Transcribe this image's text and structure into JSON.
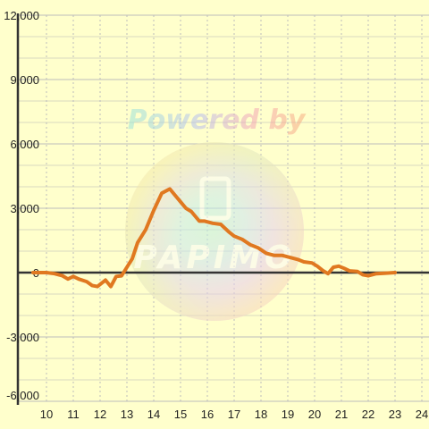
{
  "watermark": {
    "powered_by": "Powered by",
    "brand": "PAPIMO"
  },
  "chart_data": {
    "type": "line",
    "title": "",
    "xlabel": "",
    "ylabel": "",
    "xlim": [
      9.5,
      24.3
    ],
    "ylim": [
      -6000,
      12000
    ],
    "x_ticks": [
      "10",
      "11",
      "12",
      "13",
      "14",
      "15",
      "16",
      "17",
      "18",
      "19",
      "20",
      "21",
      "22",
      "23",
      "24"
    ],
    "y_ticks": [
      "12,000",
      "9,000",
      "6,000",
      "3,000",
      "0",
      "-3,000",
      "-6,000"
    ],
    "grid": true,
    "series": [
      {
        "color": "#e07820",
        "x": [
          9.5,
          10.0,
          10.3,
          10.6,
          10.8,
          11.0,
          11.2,
          11.5,
          11.7,
          11.9,
          12.2,
          12.4,
          12.6,
          12.8,
          13.0,
          13.2,
          13.4,
          13.7,
          14.0,
          14.3,
          14.6,
          14.8,
          15.0,
          15.2,
          15.4,
          15.7,
          15.9,
          16.2,
          16.5,
          16.8,
          17.0,
          17.3,
          17.6,
          17.9,
          18.2,
          18.5,
          18.8,
          19.1,
          19.4,
          19.6,
          19.9,
          20.1,
          20.3,
          20.5,
          20.7,
          20.9,
          21.1,
          21.3,
          21.6,
          21.8,
          22.0,
          22.3,
          22.6,
          23.0
        ],
        "y": [
          0,
          0,
          -50,
          -150,
          -300,
          -180,
          -300,
          -420,
          -600,
          -650,
          -350,
          -650,
          -180,
          -150,
          250,
          650,
          1400,
          2000,
          2900,
          3700,
          3900,
          3600,
          3300,
          3000,
          2850,
          2400,
          2400,
          2300,
          2250,
          1900,
          1700,
          1550,
          1300,
          1150,
          900,
          800,
          800,
          700,
          600,
          500,
          450,
          300,
          100,
          -50,
          250,
          300,
          200,
          80,
          50,
          -100,
          -150,
          -50,
          -30,
          0
        ]
      }
    ]
  }
}
